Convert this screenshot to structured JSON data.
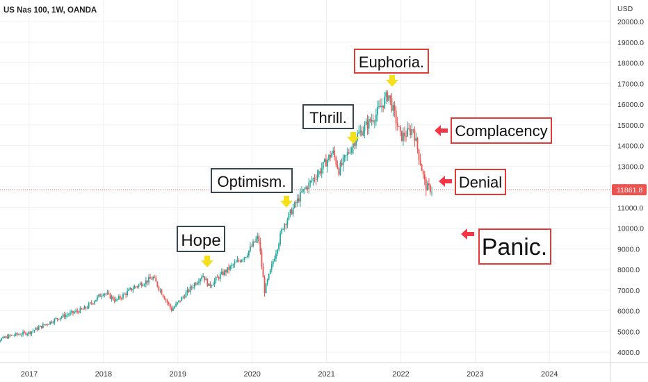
{
  "header": {
    "title": "US Nas 100, 1W, OANDA"
  },
  "price_axis": {
    "currency": "USD",
    "ticks": [
      "20000.0",
      "19000.0",
      "18000.0",
      "17000.0",
      "16000.0",
      "15000.0",
      "14000.0",
      "13000.0",
      "12000.0",
      "11000.0",
      "10000.0",
      "9000.0",
      "8000.0",
      "7000.0",
      "6000.0",
      "5000.0",
      "4000.0"
    ],
    "last_price_label": "11861.8"
  },
  "time_axis": {
    "ticks": [
      "2017",
      "2018",
      "2019",
      "2020",
      "2021",
      "2022",
      "2023",
      "2024"
    ]
  },
  "annotations": [
    {
      "text": "Hope",
      "style": "dark",
      "marker": "down-arrow"
    },
    {
      "text": "Optimism.",
      "style": "dark",
      "marker": "down-arrow"
    },
    {
      "text": "Thrill.",
      "style": "dark",
      "marker": "down-arrow"
    },
    {
      "text": "Euphoria.",
      "style": "red",
      "marker": "down-arrow"
    },
    {
      "text": "Complacency",
      "style": "red",
      "marker": "left-arrow"
    },
    {
      "text": "Denial",
      "style": "red",
      "marker": "left-arrow"
    },
    {
      "text": "Panic.",
      "style": "red",
      "marker": "left-arrow"
    }
  ],
  "colors": {
    "up_candle": "#26a69a",
    "down_candle": "#ef5350",
    "dark_label_border": "#37474f",
    "red_label_border": "#e53935",
    "down_arrow": "#f5e11b",
    "left_arrow": "#f23645",
    "last_price_bg": "#ef5350"
  },
  "chart_data": {
    "type": "candlestick",
    "title": "US Nas 100, 1W, OANDA",
    "ylabel": "USD",
    "ylim": [
      3500,
      21000
    ],
    "xlim": [
      "2016-06",
      "2024-08"
    ],
    "last_price": 11861.8,
    "approx_close_path": [
      {
        "date": "2016-06",
        "close": 4350
      },
      {
        "date": "2016-10",
        "close": 4800
      },
      {
        "date": "2017-01",
        "close": 4950
      },
      {
        "date": "2017-06",
        "close": 5700
      },
      {
        "date": "2017-10",
        "close": 6100
      },
      {
        "date": "2018-01",
        "close": 6900
      },
      {
        "date": "2018-03",
        "close": 6500
      },
      {
        "date": "2018-06",
        "close": 7150
      },
      {
        "date": "2018-09",
        "close": 7600
      },
      {
        "date": "2018-12",
        "close": 6050
      },
      {
        "date": "2019-05",
        "close": 7750
      },
      {
        "date": "2019-06",
        "close": 7200
      },
      {
        "date": "2019-08",
        "close": 7750
      },
      {
        "date": "2019-12",
        "close": 8700
      },
      {
        "date": "2020-02",
        "close": 9600
      },
      {
        "date": "2020-03",
        "close": 6950
      },
      {
        "date": "2020-06",
        "close": 10100
      },
      {
        "date": "2020-09",
        "close": 11700
      },
      {
        "date": "2020-12",
        "close": 12800
      },
      {
        "date": "2021-02",
        "close": 13700
      },
      {
        "date": "2021-03",
        "close": 12800
      },
      {
        "date": "2021-06",
        "close": 14500
      },
      {
        "date": "2021-09",
        "close": 15500
      },
      {
        "date": "2021-11",
        "close": 16500
      },
      {
        "date": "2022-01",
        "close": 14400
      },
      {
        "date": "2022-03",
        "close": 14800
      },
      {
        "date": "2022-05",
        "close": 12000
      },
      {
        "date": "2022-06",
        "close": 11861.8
      }
    ]
  }
}
